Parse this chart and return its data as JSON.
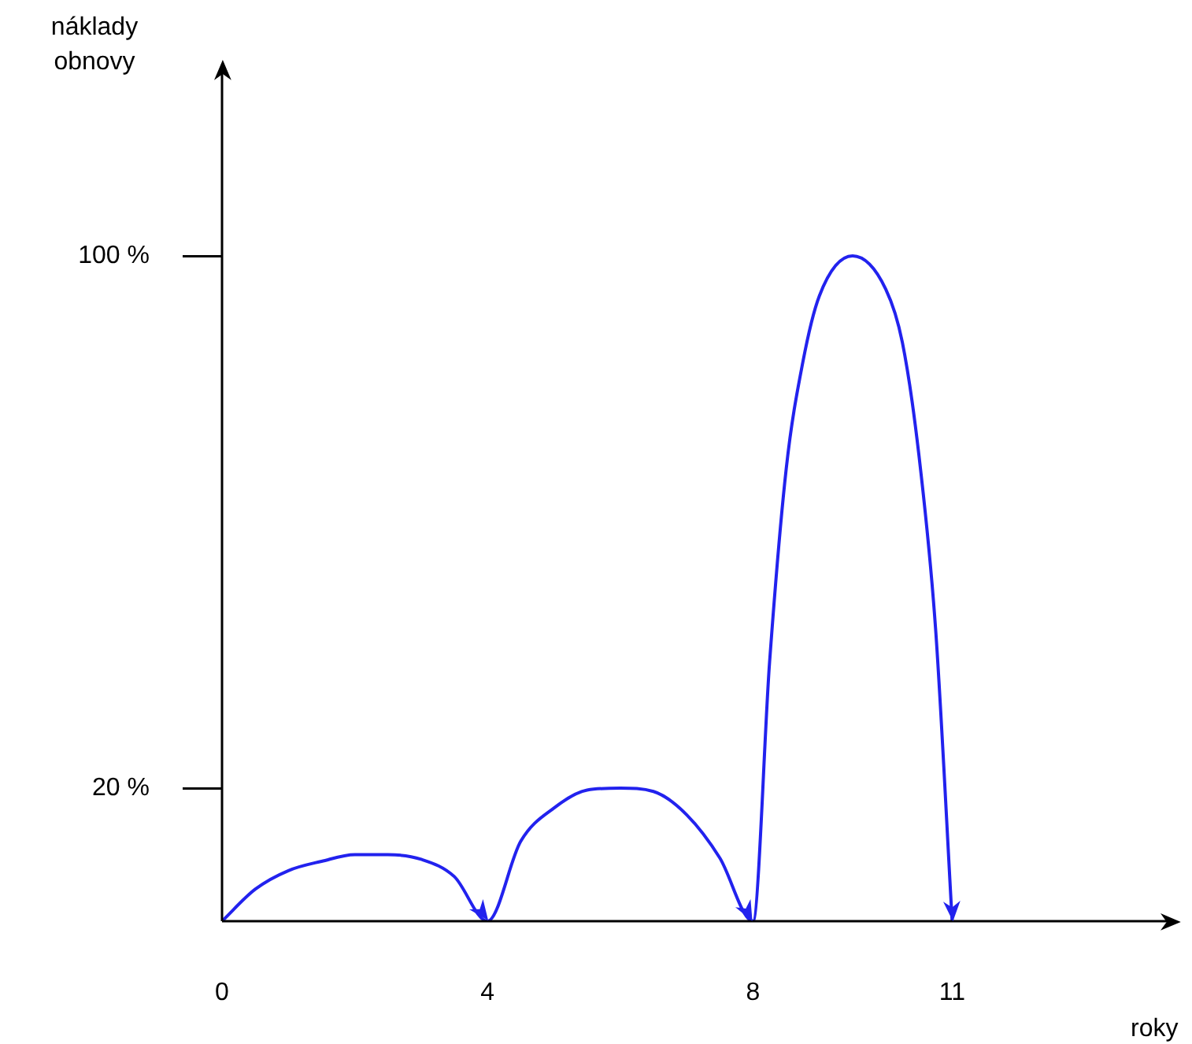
{
  "chart_data": {
    "type": "line",
    "xlabel": "roky",
    "ylabel": "náklady obnovy",
    "x": [
      0,
      0.5,
      1,
      1.5,
      2,
      2.5,
      3,
      3.5,
      4,
      4.5,
      5,
      5.5,
      6,
      6.5,
      7,
      7.5,
      8,
      8.25,
      8.5,
      8.75,
      9,
      9.5,
      10,
      10.25,
      10.5,
      10.75,
      11
    ],
    "series": [
      {
        "color": "#2222ee",
        "values": [
          0,
          4.8,
          7.6,
          9,
          10,
          10,
          9.3,
          6.7,
          0,
          12,
          17,
          19.7,
          20,
          19.5,
          16,
          9.5,
          0,
          39,
          68,
          84,
          94,
          100,
          95,
          87,
          70,
          44,
          0
        ]
      }
    ],
    "xlim": [
      0,
      14.4
    ],
    "xticks": [
      0,
      4,
      8,
      11
    ],
    "ylim": [
      0,
      129
    ],
    "yticks": [
      {
        "value": 20,
        "label": "20 %"
      },
      {
        "value": 100,
        "label": "100 %"
      }
    ],
    "grid": false,
    "legend": false,
    "marker": "none",
    "line_style": "solid"
  }
}
